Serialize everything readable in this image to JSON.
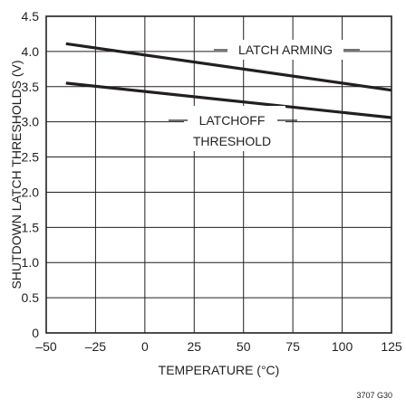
{
  "chart_data": {
    "type": "line",
    "xlabel": "TEMPERATURE (°C)",
    "ylabel": "SHUTDOWN LATCH THRESHOLDS (V)",
    "xlim": [
      -50,
      125
    ],
    "ylim": [
      0,
      4.5
    ],
    "x_ticks": [
      -50,
      -25,
      0,
      25,
      50,
      75,
      100,
      125
    ],
    "x_tick_labels": [
      "–50",
      "–25",
      "0",
      "25",
      "50",
      "75",
      "100",
      "125"
    ],
    "y_ticks": [
      0,
      0.5,
      1.0,
      1.5,
      2.0,
      2.5,
      3.0,
      3.5,
      4.0,
      4.5
    ],
    "y_tick_labels": [
      "0",
      "0.5",
      "1.0",
      "1.5",
      "2.0",
      "2.5",
      "3.0",
      "3.5",
      "4.0",
      "4.5"
    ],
    "grid": true,
    "series": [
      {
        "name": "LATCH ARMING",
        "x": [
          -40,
          125
        ],
        "y": [
          4.11,
          3.45
        ]
      },
      {
        "name": "LATCHOFF THRESHOLD",
        "x": [
          -40,
          125
        ],
        "y": [
          3.55,
          3.06
        ]
      }
    ],
    "annotations": [
      {
        "lines": [
          "LATCH ARMING"
        ]
      },
      {
        "lines": [
          "LATCHOFF",
          "THRESHOLD"
        ]
      }
    ],
    "figure_id": "3707 G30"
  }
}
